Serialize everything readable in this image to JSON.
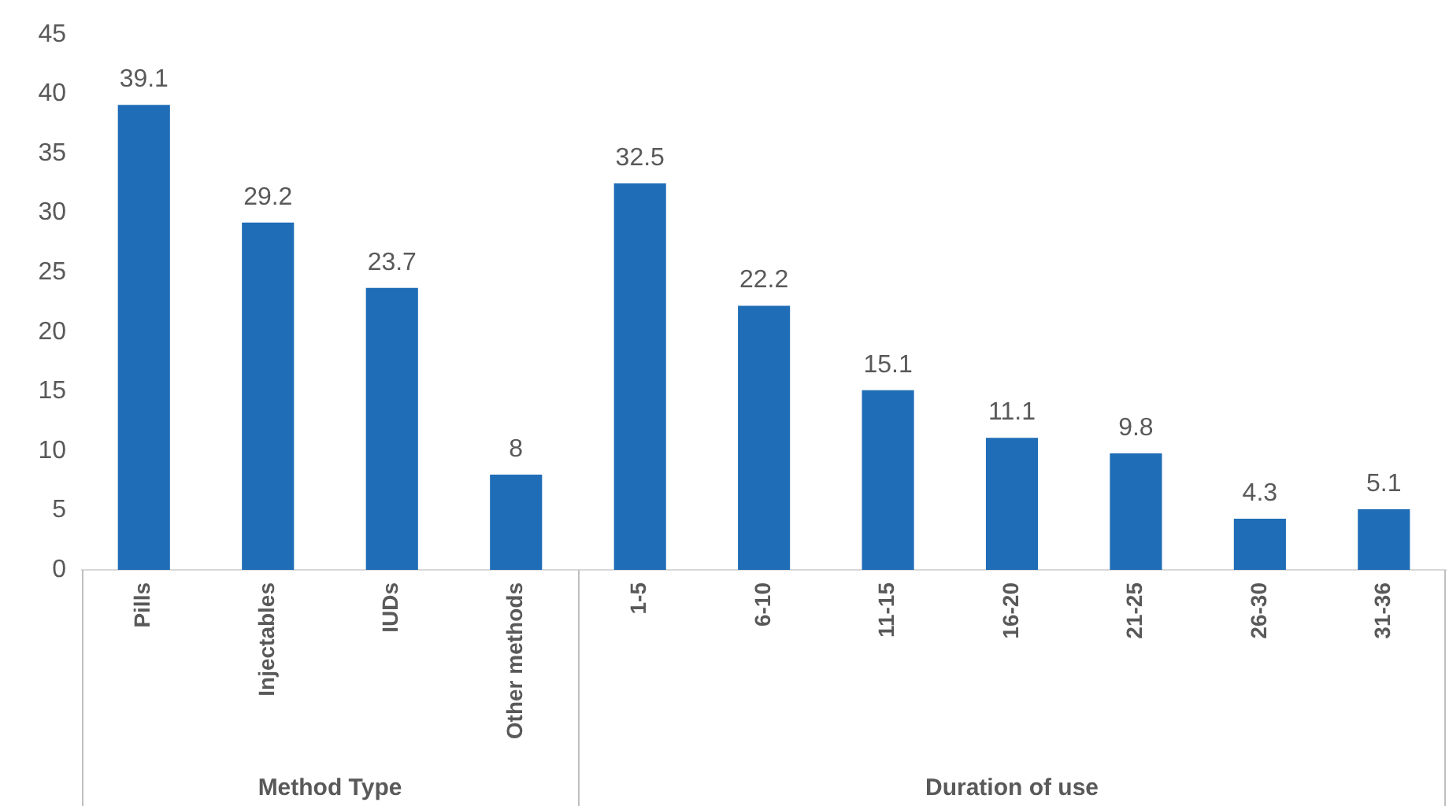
{
  "chart_data": [
    {
      "type": "bar",
      "xlabel": "Method Type",
      "categories": [
        "Pills",
        "Injectables",
        "IUDs",
        "Other methods"
      ],
      "values": [
        39.1,
        29.2,
        23.7,
        8
      ],
      "color": "#1f6db6",
      "ylim": [
        0,
        45
      ],
      "yticks": [
        0,
        5,
        10,
        15,
        20,
        25,
        30,
        35,
        40,
        45
      ],
      "grid": false,
      "legend": false,
      "data_labels": true
    },
    {
      "type": "bar",
      "xlabel": "Duration of use",
      "categories": [
        "1-5",
        "6-10",
        "11-15",
        "16-20",
        "21-25",
        "26-30",
        "31-36"
      ],
      "values": [
        32.5,
        22.2,
        15.1,
        11.1,
        9.8,
        4.3,
        5.1
      ],
      "color": "#1f6db6",
      "ylim": [
        0,
        45
      ],
      "yticks": [
        0,
        5,
        10,
        15,
        20,
        25,
        30,
        35,
        40,
        45
      ],
      "tick_labels": "x",
      "grid": false,
      "legend": false,
      "data_labels": true
    }
  ]
}
